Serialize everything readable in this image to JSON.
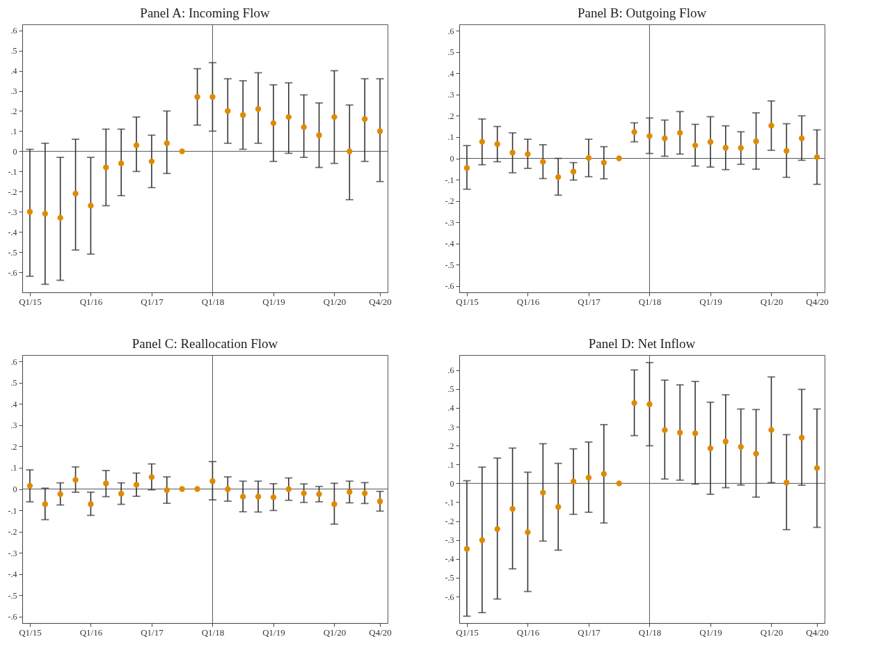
{
  "chart_data": [
    {
      "type": "scatter",
      "title": "Panel A: Incoming Flow",
      "categories": [
        "Q1/15",
        null,
        null,
        null,
        "Q1/16",
        null,
        null,
        null,
        "Q1/17",
        null,
        null,
        null,
        "Q1/18",
        null,
        null,
        null,
        "Q1/19",
        null,
        null,
        null,
        "Q1/20",
        null,
        null,
        "Q4/20"
      ],
      "marker": "circle",
      "ylim": [
        -0.7,
        0.63
      ],
      "yticks": [
        {
          "value": -0.6,
          "label": "-.6"
        },
        {
          "value": -0.5,
          "label": "-.5"
        },
        {
          "value": -0.4,
          "label": "-.4"
        },
        {
          "value": -0.3,
          "label": "-.3"
        },
        {
          "value": -0.2,
          "label": "-.2"
        },
        {
          "value": -0.1,
          "label": "-.1"
        },
        {
          "value": 0,
          "label": "0"
        },
        {
          "value": 0.1,
          "label": ".1"
        },
        {
          "value": 0.2,
          "label": ".2"
        },
        {
          "value": 0.3,
          "label": ".3"
        },
        {
          "value": 0.4,
          "label": ".4"
        },
        {
          "value": 0.5,
          "label": ".5"
        },
        {
          "value": 0.6,
          "label": ".6"
        }
      ],
      "ref_lines": [
        {
          "axis": "x",
          "value": "Q1/18"
        },
        {
          "axis": "y",
          "value": 0
        }
      ],
      "series": [
        {
          "color": "#e08a00",
          "values": [
            -0.3,
            -0.31,
            -0.33,
            -0.21,
            -0.27,
            -0.08,
            -0.06,
            0.03,
            -0.05,
            0.04,
            0,
            0.27,
            0.27,
            0.2,
            0.18,
            0.21,
            0.14,
            0.17,
            0.12,
            0.08,
            0.17,
            0,
            0.16,
            0.1
          ],
          "errors": [
            [
              -0.62,
              0.01
            ],
            [
              -0.66,
              0.04
            ],
            [
              -0.64,
              -0.03
            ],
            [
              -0.49,
              0.06
            ],
            [
              -0.51,
              -0.03
            ],
            [
              -0.27,
              0.11
            ],
            [
              -0.22,
              0.11
            ],
            [
              -0.1,
              0.17
            ],
            [
              -0.18,
              0.08
            ],
            [
              -0.11,
              0.2
            ],
            null,
            [
              0.13,
              0.41
            ],
            [
              0.1,
              0.44
            ],
            [
              0.04,
              0.36
            ],
            [
              0.01,
              0.35
            ],
            [
              0.04,
              0.39
            ],
            [
              -0.05,
              0.33
            ],
            [
              -0.01,
              0.34
            ],
            [
              -0.03,
              0.28
            ],
            [
              -0.08,
              0.24
            ],
            [
              -0.06,
              0.4
            ],
            [
              -0.24,
              0.23
            ],
            [
              -0.05,
              0.36
            ],
            [
              -0.15,
              0.36
            ]
          ]
        }
      ]
    },
    {
      "type": "scatter",
      "title": "Panel B: Outgoing Flow",
      "categories": [
        "Q1/15",
        null,
        null,
        null,
        "Q1/16",
        null,
        null,
        null,
        "Q1/17",
        null,
        null,
        null,
        "Q1/18",
        null,
        null,
        null,
        "Q1/19",
        null,
        null,
        null,
        "Q1/20",
        null,
        null,
        "Q4/20"
      ],
      "marker": "circle",
      "ylim": [
        -0.63,
        0.63
      ],
      "yticks": [
        {
          "value": -0.6,
          "label": "-.6"
        },
        {
          "value": -0.5,
          "label": "-.5"
        },
        {
          "value": -0.4,
          "label": "-.4"
        },
        {
          "value": -0.3,
          "label": "-.3"
        },
        {
          "value": -0.2,
          "label": "-.2"
        },
        {
          "value": -0.1,
          "label": "-.1"
        },
        {
          "value": 0,
          "label": "0"
        },
        {
          "value": 0.1,
          "label": ".1"
        },
        {
          "value": 0.2,
          "label": ".2"
        },
        {
          "value": 0.3,
          "label": ".3"
        },
        {
          "value": 0.4,
          "label": ".4"
        },
        {
          "value": 0.5,
          "label": ".5"
        },
        {
          "value": 0.6,
          "label": ".6"
        }
      ],
      "ref_lines": [
        {
          "axis": "x",
          "value": "Q1/18"
        },
        {
          "axis": "y",
          "value": 0
        }
      ],
      "series": [
        {
          "color": "#e08a00",
          "values": [
            -0.045,
            0.078,
            0.067,
            0.027,
            0.02,
            -0.016,
            -0.088,
            -0.062,
            0.002,
            -0.02,
            0,
            0.124,
            0.105,
            0.094,
            0.12,
            0.061,
            0.077,
            0.05,
            0.049,
            0.08,
            0.154,
            0.035,
            0.094,
            0.006
          ],
          "errors": [
            [
              -0.145,
              0.06
            ],
            [
              -0.03,
              0.185
            ],
            [
              -0.016,
              0.15
            ],
            [
              -0.068,
              0.12
            ],
            [
              -0.047,
              0.09
            ],
            [
              -0.095,
              0.064
            ],
            [
              -0.173,
              0
            ],
            [
              -0.102,
              -0.02
            ],
            [
              -0.086,
              0.09
            ],
            [
              -0.096,
              0.055
            ],
            null,
            [
              0.078,
              0.167
            ],
            [
              0.023,
              0.19
            ],
            [
              0.01,
              0.18
            ],
            [
              0.02,
              0.22
            ],
            [
              -0.036,
              0.16
            ],
            [
              -0.041,
              0.196
            ],
            [
              -0.053,
              0.153
            ],
            [
              -0.028,
              0.125
            ],
            [
              -0.051,
              0.214
            ],
            [
              0.038,
              0.27
            ],
            [
              -0.089,
              0.163
            ],
            [
              -0.009,
              0.2
            ],
            [
              -0.122,
              0.134
            ]
          ]
        }
      ]
    },
    {
      "type": "scatter",
      "title": "Panel C: Reallocation Flow",
      "categories": [
        "Q1/15",
        null,
        null,
        null,
        "Q1/16",
        null,
        null,
        null,
        "Q1/17",
        null,
        null,
        null,
        "Q1/18",
        null,
        null,
        null,
        "Q1/19",
        null,
        null,
        null,
        "Q1/20",
        null,
        null,
        "Q4/20"
      ],
      "marker": "circle",
      "ylim": [
        -0.63,
        0.63
      ],
      "yticks": [
        {
          "value": -0.6,
          "label": "-.6"
        },
        {
          "value": -0.5,
          "label": "-.5"
        },
        {
          "value": -0.4,
          "label": "-.4"
        },
        {
          "value": -0.3,
          "label": "-.3"
        },
        {
          "value": -0.2,
          "label": "-.2"
        },
        {
          "value": -0.1,
          "label": "-.1"
        },
        {
          "value": 0,
          "label": "0"
        },
        {
          "value": 0.1,
          "label": ".1"
        },
        {
          "value": 0.2,
          "label": ".2"
        },
        {
          "value": 0.3,
          "label": ".3"
        },
        {
          "value": 0.4,
          "label": ".4"
        },
        {
          "value": 0.5,
          "label": ".5"
        },
        {
          "value": 0.6,
          "label": ".6"
        }
      ],
      "ref_lines": [
        {
          "axis": "x",
          "value": "Q1/18"
        },
        {
          "axis": "y",
          "value": 0
        }
      ],
      "series": [
        {
          "color": "#e08a00",
          "values": [
            0.015,
            -0.071,
            -0.024,
            0.043,
            -0.071,
            0.026,
            -0.022,
            0.02,
            0.056,
            -0.005,
            0,
            0,
            0.037,
            -0.001,
            -0.036,
            -0.036,
            -0.039,
            -0.001,
            -0.02,
            -0.024,
            -0.071,
            -0.014,
            -0.02,
            -0.058
          ],
          "errors": [
            [
              -0.06,
              0.09
            ],
            [
              -0.144,
              0.004
            ],
            [
              -0.075,
              0.029
            ],
            [
              -0.015,
              0.104
            ],
            [
              -0.124,
              -0.015
            ],
            [
              -0.036,
              0.087
            ],
            [
              -0.072,
              0.029
            ],
            [
              -0.034,
              0.075
            ],
            [
              -0.004,
              0.118
            ],
            [
              -0.067,
              0.057
            ],
            null,
            null,
            [
              -0.051,
              0.129
            ],
            [
              -0.057,
              0.057
            ],
            [
              -0.107,
              0.037
            ],
            [
              -0.108,
              0.037
            ],
            [
              -0.101,
              0.025
            ],
            [
              -0.053,
              0.052
            ],
            [
              -0.063,
              0.024
            ],
            [
              -0.06,
              0.012
            ],
            [
              -0.165,
              0.027
            ],
            [
              -0.065,
              0.037
            ],
            [
              -0.068,
              0.03
            ],
            [
              -0.104,
              -0.011
            ]
          ]
        }
      ]
    },
    {
      "type": "scatter",
      "title": "Panel D: Net Inflow",
      "categories": [
        "Q1/15",
        null,
        null,
        null,
        "Q1/16",
        null,
        null,
        null,
        "Q1/17",
        null,
        null,
        null,
        "Q1/18",
        null,
        null,
        null,
        "Q1/19",
        null,
        null,
        null,
        "Q1/20",
        null,
        null,
        "Q4/20"
      ],
      "marker": "circle",
      "ylim": [
        -0.74,
        0.68
      ],
      "yticks": [
        {
          "value": -0.6,
          "label": "-.6"
        },
        {
          "value": -0.5,
          "label": "-.5"
        },
        {
          "value": -0.4,
          "label": "-.4"
        },
        {
          "value": -0.3,
          "label": "-.3"
        },
        {
          "value": -0.2,
          "label": "-.2"
        },
        {
          "value": -0.1,
          "label": "-.1"
        },
        {
          "value": 0,
          "label": "0"
        },
        {
          "value": 0.1,
          "label": ".1"
        },
        {
          "value": 0.2,
          "label": ".2"
        },
        {
          "value": 0.3,
          "label": ".3"
        },
        {
          "value": 0.4,
          "label": ".4"
        },
        {
          "value": 0.5,
          "label": ".5"
        },
        {
          "value": 0.6,
          "label": ".6"
        }
      ],
      "ref_lines": [
        {
          "axis": "x",
          "value": "Q1/18"
        },
        {
          "axis": "y",
          "value": 0
        }
      ],
      "series": [
        {
          "color": "#e08a00",
          "values": [
            -0.347,
            -0.301,
            -0.242,
            -0.135,
            -0.259,
            -0.049,
            -0.125,
            0.01,
            0.03,
            0.05,
            0,
            0.426,
            0.419,
            0.282,
            0.269,
            0.265,
            0.186,
            0.222,
            0.193,
            0.157,
            0.283,
            0.004,
            0.242,
            0.081
          ],
          "errors": [
            [
              -0.704,
              0.014
            ],
            [
              -0.685,
              0.086
            ],
            [
              -0.613,
              0.134
            ],
            [
              -0.453,
              0.187
            ],
            [
              -0.573,
              0.059
            ],
            [
              -0.306,
              0.21
            ],
            [
              -0.354,
              0.106
            ],
            [
              -0.164,
              0.183
            ],
            [
              -0.153,
              0.219
            ],
            [
              -0.21,
              0.311
            ],
            null,
            [
              0.253,
              0.601
            ],
            [
              0.199,
              0.64
            ],
            [
              0.023,
              0.547
            ],
            [
              0.017,
              0.522
            ],
            [
              -0.004,
              0.54
            ],
            [
              -0.058,
              0.43
            ],
            [
              -0.023,
              0.469
            ],
            [
              -0.009,
              0.394
            ],
            [
              -0.073,
              0.391
            ],
            [
              0.004,
              0.564
            ],
            [
              -0.245,
              0.258
            ],
            [
              -0.01,
              0.498
            ],
            [
              -0.233,
              0.394
            ]
          ]
        }
      ]
    }
  ]
}
